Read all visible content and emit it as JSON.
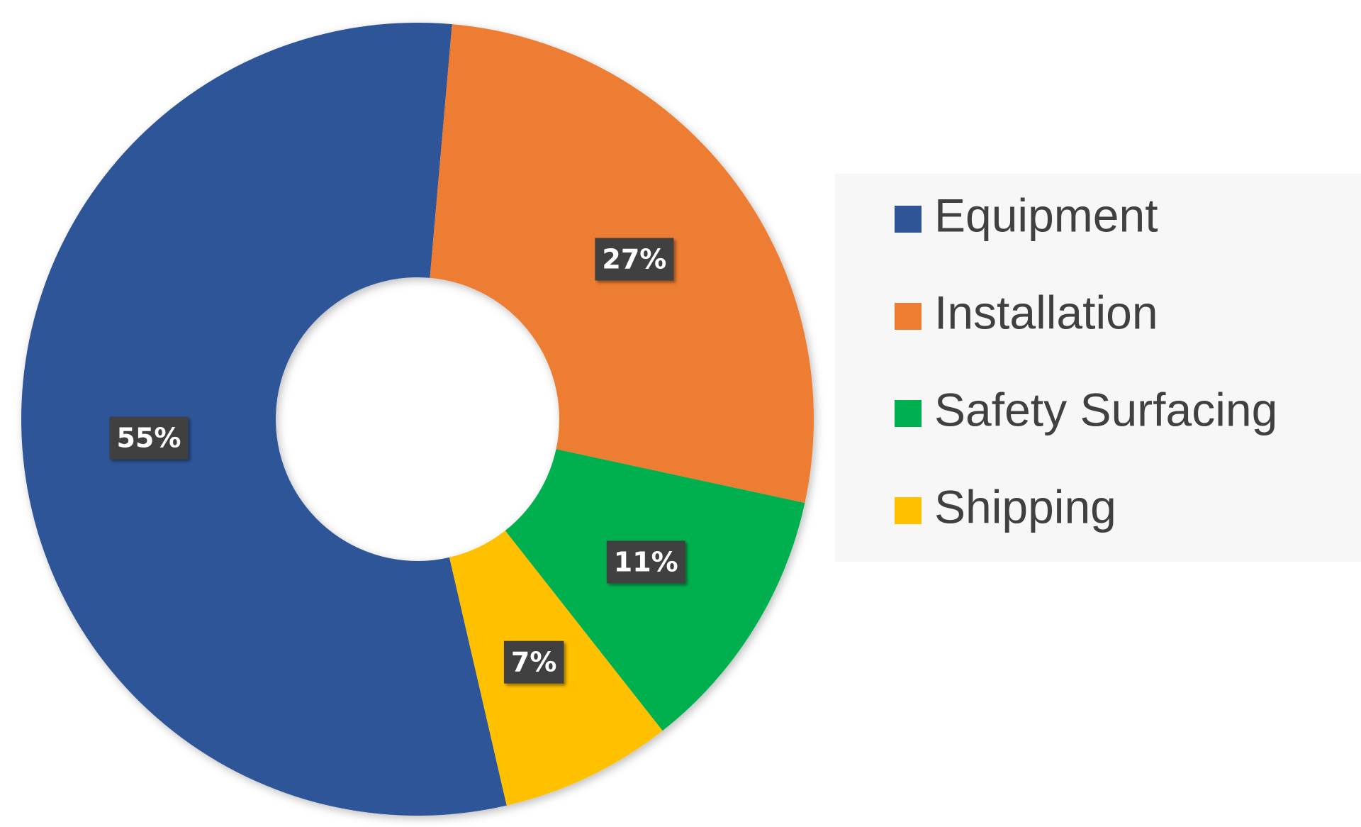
{
  "chart_data": {
    "type": "donut",
    "categories": [
      "Equipment",
      "Installation",
      "Safety Surfacing",
      "Shipping"
    ],
    "values": [
      55,
      27,
      11,
      7
    ],
    "value_labels": [
      "55%",
      "27%",
      "11%",
      "7%"
    ],
    "colors": [
      "#2f5597",
      "#ed7d31",
      "#00b050",
      "#ffc000"
    ],
    "legend": "right"
  }
}
